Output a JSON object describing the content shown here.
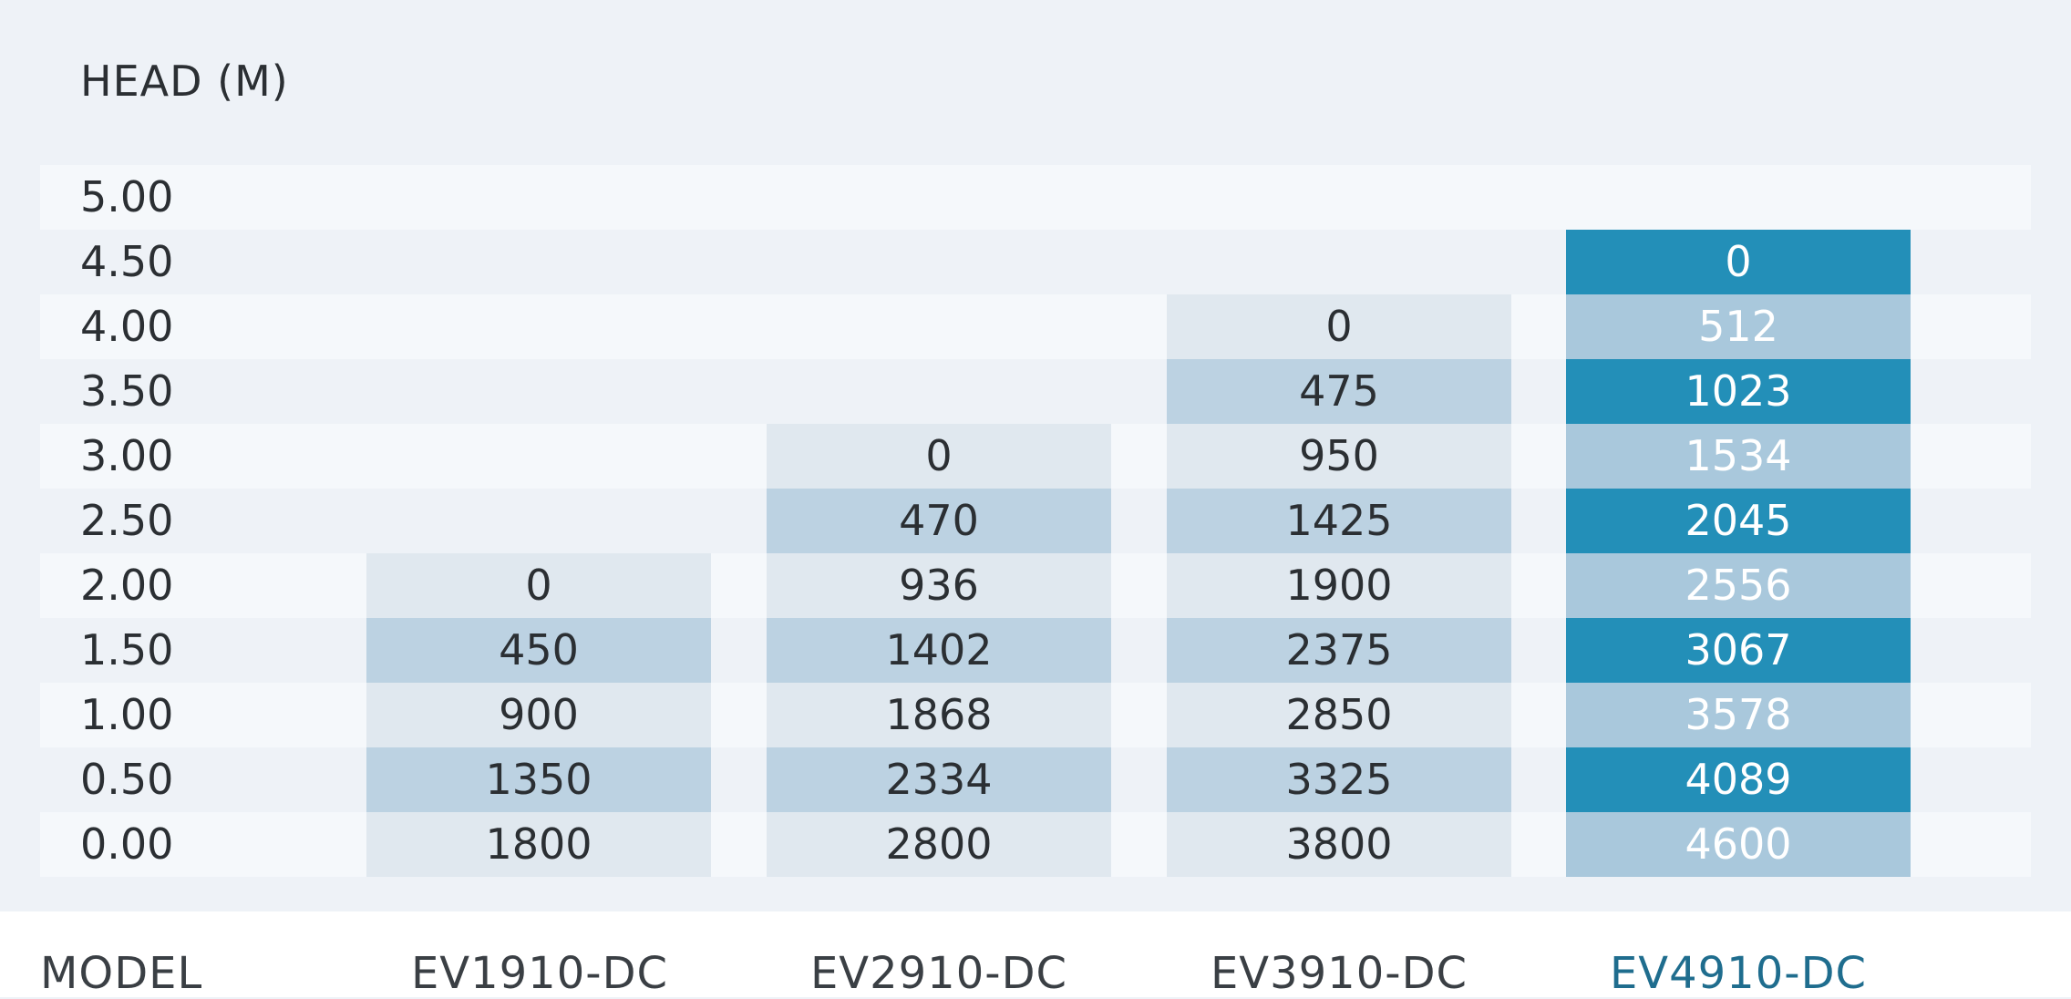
{
  "header": {
    "y_axis_label": "HEAD  (M)"
  },
  "rows": [
    "5.00",
    "4.50",
    "4.00",
    "3.50",
    "3.00",
    "2.50",
    "2.00",
    "1.50",
    "1.00",
    "0.50",
    "0.00"
  ],
  "footer": {
    "model_label": "MODEL",
    "models": [
      "EV1910-DC",
      "EV2910-DC",
      "EV3910-DC",
      "EV4910-DC"
    ]
  },
  "columns": [
    {
      "model": "EV1910-DC",
      "values": [
        "",
        "",
        "",
        "",
        "",
        "",
        "0",
        "450",
        "900",
        "1350",
        "1800"
      ]
    },
    {
      "model": "EV2910-DC",
      "values": [
        "",
        "",
        "",
        "",
        "0",
        "470",
        "936",
        "1402",
        "1868",
        "2334",
        "2800"
      ]
    },
    {
      "model": "EV3910-DC",
      "values": [
        "",
        "",
        "0",
        "475",
        "950",
        "1425",
        "1900",
        "2375",
        "2850",
        "3325",
        "3800"
      ]
    },
    {
      "model": "EV4910-DC",
      "values": [
        "",
        "0",
        "512",
        "1023",
        "1534",
        "2045",
        "2556",
        "3067",
        "3578",
        "4089",
        "4600"
      ]
    }
  ],
  "colors": {
    "page_background": "#eef2f7",
    "stripe": "#f5f8fb",
    "cell_light": "#e0e8ef",
    "cell_mid": "#bcd2e2",
    "highlight_dark": "#238fb8",
    "highlight_light": "#a9c8dc",
    "highlight_text": "#1f6d8e"
  }
}
